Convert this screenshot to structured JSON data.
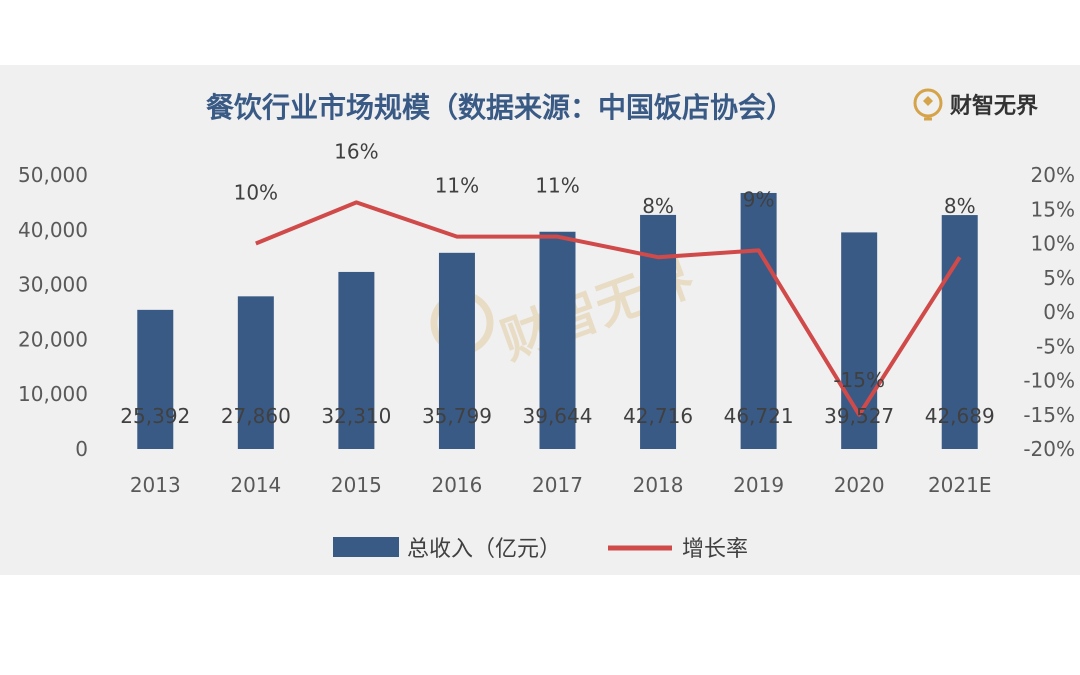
{
  "brand": {
    "name": "财智无界",
    "accent": "#d4a34a"
  },
  "chart_data": {
    "type": "bar",
    "title": "餐饮行业市场规模（数据来源：中国饭店协会）",
    "categories": [
      "2013",
      "2014",
      "2015",
      "2016",
      "2017",
      "2018",
      "2019",
      "2020",
      "2021E"
    ],
    "series": [
      {
        "name": "总收入（亿元）",
        "type": "bar",
        "axis": "left",
        "color": "#3a5a86",
        "values": [
          25392,
          27860,
          32310,
          35799,
          39644,
          42716,
          46721,
          39527,
          42689
        ],
        "labels": [
          "25,392",
          "27,860",
          "32,310",
          "35,799",
          "39,644",
          "42,716",
          "46,721",
          "39,527",
          "42,689"
        ]
      },
      {
        "name": "增长率",
        "type": "line",
        "axis": "right",
        "color": "#d14a4a",
        "values": [
          null,
          10,
          16,
          11,
          11,
          8,
          9,
          -15,
          8
        ],
        "labels": [
          "",
          "10%",
          "16%",
          "11%",
          "11%",
          "8%",
          "9%",
          "-15%",
          "8%"
        ]
      }
    ],
    "left_axis": {
      "ylim": [
        0,
        50000
      ],
      "ticks": [
        "0",
        "10,000",
        "20,000",
        "30,000",
        "40,000",
        "50,000"
      ]
    },
    "right_axis": {
      "ylim": [
        -20,
        20
      ],
      "ticks": [
        "-20%",
        "-15%",
        "-10%",
        "-5%",
        "0%",
        "5%",
        "10%",
        "15%",
        "20%"
      ]
    },
    "legend_position": "bottom",
    "grid": false
  }
}
